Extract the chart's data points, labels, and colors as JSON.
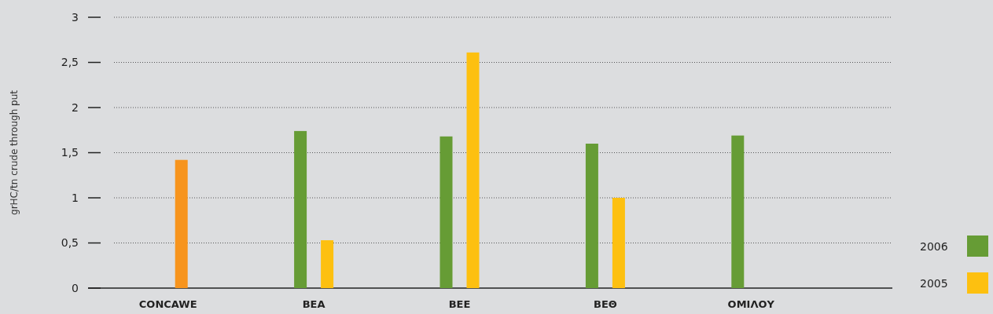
{
  "chart_data": {
    "type": "bar",
    "ylabel": "grHC/tn crude through put",
    "categories": [
      "CONCAWE",
      "ΒΕΑ",
      "ΒΕΕ",
      "ΒΕΘ",
      "ΟΜΙΛΟΥ"
    ],
    "series": [
      {
        "name": "2006",
        "color": "#669c35",
        "values": [
          null,
          1.74,
          1.68,
          1.6,
          1.69
        ]
      },
      {
        "name": "2005",
        "color": "#fdc010",
        "colors": [
          "#f7941d",
          "#fdc010",
          "#fdc010",
          "#fdc010",
          null
        ],
        "values": [
          1.42,
          0.53,
          2.61,
          1.0,
          null
        ]
      }
    ],
    "ylim": [
      0,
      3
    ],
    "yticks": [
      0,
      {
        "value": 0.5,
        "label": "0,5"
      },
      1,
      {
        "value": 1.5,
        "label": "1,5"
      },
      2,
      {
        "value": 2.5,
        "label": "2,5"
      },
      3
    ],
    "grid": "y",
    "legend": "bottom right"
  }
}
